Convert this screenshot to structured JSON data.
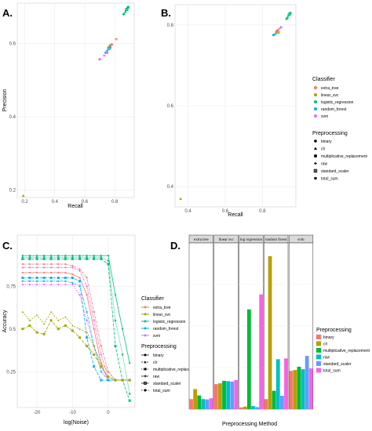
{
  "panels": {
    "A": {
      "label": "A."
    },
    "B": {
      "label": "B."
    },
    "C": {
      "label": "C."
    },
    "D": {
      "label": "D."
    }
  },
  "colors": {
    "extra_tree": "#f8766d",
    "linear_svc": "#a3a500",
    "logistic_regression": "#00bf7d",
    "random_forest": "#00b0f6",
    "svm": "#e76bf3",
    "binary": "#f8766d",
    "clr": "#b79f00",
    "multiplicative_replacement": "#00ba38",
    "raw": "#00bfc4",
    "standard_scaler": "#619cff",
    "total_sum": "#f564e3"
  },
  "legend_ab": {
    "classifier_title": "Classifier",
    "classifiers": [
      "extra_tree",
      "linear_svc",
      "logistic_regression",
      "random_forest",
      "svm"
    ],
    "preprocessing_title": "Preprocessing",
    "preprocessing": [
      "binary",
      "clr",
      "multiplicative_replacement",
      "raw",
      "standard_scaler",
      "total_sum"
    ]
  },
  "legend_c": {
    "classifier_title": "Classifier",
    "classifiers": [
      "extra_tree",
      "linear_svc",
      "logistic_regression",
      "random_forest",
      "svm"
    ],
    "preprocessing_title": "Preprocessing",
    "preprocessing": [
      "binary",
      "clr",
      "multiplicative_replacement",
      "raw",
      "standard_scaler",
      "total_sum"
    ]
  },
  "legend_d": {
    "title": "Preprocessing",
    "items": [
      "binary",
      "clr",
      "multiplicative_replacement",
      "raw",
      "standard_scaler",
      "total_sum"
    ]
  },
  "chart_data": [
    {
      "panel": "A",
      "type": "scatter",
      "xlabel": "Recall",
      "ylabel": "Precision",
      "xlim": [
        0.15,
        0.93
      ],
      "ylim": [
        0.18,
        0.71
      ],
      "xticks": [
        0.2,
        0.4,
        0.6,
        0.8
      ],
      "yticks": [
        0.2,
        0.4,
        0.6
      ],
      "legend_position": "right",
      "grid": true,
      "points": [
        {
          "x": 0.19,
          "y": 0.185,
          "classifier": "linear_svc",
          "preprocessing": "clr"
        },
        {
          "x": 0.81,
          "y": 0.612,
          "classifier": "extra_tree",
          "preprocessing": "raw"
        },
        {
          "x": 0.78,
          "y": 0.597,
          "classifier": "extra_tree",
          "preprocessing": "binary"
        },
        {
          "x": 0.77,
          "y": 0.595,
          "classifier": "extra_tree",
          "preprocessing": "total_sum"
        },
        {
          "x": 0.86,
          "y": 0.68,
          "classifier": "logistic_regression",
          "preprocessing": "binary"
        },
        {
          "x": 0.87,
          "y": 0.686,
          "classifier": "logistic_regression",
          "preprocessing": "clr"
        },
        {
          "x": 0.875,
          "y": 0.69,
          "classifier": "logistic_regression",
          "preprocessing": "raw"
        },
        {
          "x": 0.88,
          "y": 0.693,
          "classifier": "logistic_regression",
          "preprocessing": "standard_scaler"
        },
        {
          "x": 0.885,
          "y": 0.696,
          "classifier": "logistic_regression",
          "preprocessing": "total_sum"
        },
        {
          "x": 0.89,
          "y": 0.699,
          "classifier": "logistic_regression",
          "preprocessing": "multiplicative_replacement"
        },
        {
          "x": 0.74,
          "y": 0.575,
          "classifier": "random_forest",
          "preprocessing": "binary"
        },
        {
          "x": 0.75,
          "y": 0.58,
          "classifier": "random_forest",
          "preprocessing": "raw"
        },
        {
          "x": 0.76,
          "y": 0.586,
          "classifier": "random_forest",
          "preprocessing": "standard_scaler"
        },
        {
          "x": 0.765,
          "y": 0.59,
          "classifier": "linear_svc",
          "preprocessing": "standard_scaler"
        },
        {
          "x": 0.77,
          "y": 0.589,
          "classifier": "random_forest",
          "preprocessing": "total_sum"
        },
        {
          "x": 0.7,
          "y": 0.557,
          "classifier": "svm",
          "preprocessing": "binary"
        },
        {
          "x": 0.73,
          "y": 0.567,
          "classifier": "svm",
          "preprocessing": "raw"
        },
        {
          "x": 0.75,
          "y": 0.575,
          "classifier": "svm",
          "preprocessing": "total_sum"
        }
      ]
    },
    {
      "panel": "B",
      "type": "scatter",
      "xlabel": "Recall",
      "ylabel": "",
      "xlim": [
        0.33,
        0.98
      ],
      "ylim": [
        0.35,
        0.85
      ],
      "xticks": [
        0.4,
        0.6,
        0.8
      ],
      "yticks": [
        0.4,
        0.6,
        0.8
      ],
      "legend_position": "right",
      "grid": true,
      "points": [
        {
          "x": 0.36,
          "y": 0.37,
          "classifier": "linear_svc",
          "preprocessing": "clr"
        },
        {
          "x": 0.86,
          "y": 0.775,
          "classifier": "random_forest",
          "preprocessing": "binary"
        },
        {
          "x": 0.87,
          "y": 0.778,
          "classifier": "random_forest",
          "preprocessing": "raw"
        },
        {
          "x": 0.875,
          "y": 0.783,
          "classifier": "extra_tree",
          "preprocessing": "binary"
        },
        {
          "x": 0.88,
          "y": 0.787,
          "classifier": "extra_tree",
          "preprocessing": "raw"
        },
        {
          "x": 0.885,
          "y": 0.782,
          "classifier": "linear_svc",
          "preprocessing": "standard_scaler"
        },
        {
          "x": 0.89,
          "y": 0.79,
          "classifier": "svm",
          "preprocessing": "raw"
        },
        {
          "x": 0.9,
          "y": 0.794,
          "classifier": "svm",
          "preprocessing": "total_sum"
        },
        {
          "x": 0.93,
          "y": 0.815,
          "classifier": "logistic_regression",
          "preprocessing": "binary"
        },
        {
          "x": 0.935,
          "y": 0.819,
          "classifier": "logistic_regression",
          "preprocessing": "clr"
        },
        {
          "x": 0.94,
          "y": 0.823,
          "classifier": "logistic_regression",
          "preprocessing": "raw"
        },
        {
          "x": 0.945,
          "y": 0.826,
          "classifier": "logistic_regression",
          "preprocessing": "standard_scaler"
        },
        {
          "x": 0.95,
          "y": 0.829,
          "classifier": "logistic_regression",
          "preprocessing": "multiplicative_replacement"
        }
      ]
    },
    {
      "panel": "C",
      "type": "line",
      "xlabel": "log(Noise)",
      "ylabel": "Accuracy",
      "xlim": [
        -25.5,
        7.5
      ],
      "ylim": [
        0.04,
        1.05
      ],
      "xticks": [
        -20,
        -10,
        0
      ],
      "yticks": [
        0.25,
        0.5,
        0.75
      ],
      "legend_position": "right",
      "grid": true,
      "x": [
        -24,
        -22,
        -20,
        -18,
        -16,
        -14,
        -12,
        -10,
        -8,
        -6,
        -4,
        -2,
        0,
        2,
        4,
        6
      ],
      "series": [
        {
          "classifier": "logistic_regression",
          "preprocessing": "binary",
          "values": [
            0.93,
            0.93,
            0.93,
            0.93,
            0.93,
            0.93,
            0.93,
            0.93,
            0.93,
            0.93,
            0.93,
            0.93,
            0.93,
            0.7,
            0.5,
            0.3
          ]
        },
        {
          "classifier": "logistic_regression",
          "preprocessing": "multiplicative_replacement",
          "values": [
            0.92,
            0.92,
            0.92,
            0.92,
            0.92,
            0.92,
            0.92,
            0.92,
            0.92,
            0.92,
            0.92,
            0.92,
            0.9,
            0.55,
            0.35,
            0.12
          ]
        },
        {
          "classifier": "logistic_regression",
          "preprocessing": "standard_scaler",
          "values": [
            0.91,
            0.91,
            0.91,
            0.91,
            0.91,
            0.91,
            0.91,
            0.91,
            0.91,
            0.91,
            0.91,
            0.91,
            0.88,
            0.4,
            0.2,
            0.08
          ]
        },
        {
          "classifier": "extra_tree",
          "preprocessing": "raw",
          "values": [
            0.88,
            0.88,
            0.88,
            0.88,
            0.88,
            0.88,
            0.88,
            0.87,
            0.85,
            0.8,
            0.6,
            0.4,
            0.25,
            0.2,
            0.2,
            0.2
          ]
        },
        {
          "classifier": "extra_tree",
          "preprocessing": "binary",
          "values": [
            0.83,
            0.83,
            0.83,
            0.83,
            0.83,
            0.83,
            0.83,
            0.82,
            0.8,
            0.7,
            0.5,
            0.3,
            0.2,
            0.2,
            0.2,
            0.2
          ]
        },
        {
          "classifier": "svm",
          "preprocessing": "raw",
          "values": [
            0.86,
            0.86,
            0.86,
            0.86,
            0.86,
            0.86,
            0.86,
            0.86,
            0.84,
            0.75,
            0.55,
            0.35,
            0.22,
            0.2,
            0.2,
            0.2
          ]
        },
        {
          "classifier": "svm",
          "preprocessing": "total_sum",
          "values": [
            0.76,
            0.76,
            0.76,
            0.76,
            0.76,
            0.76,
            0.76,
            0.76,
            0.7,
            0.55,
            0.4,
            0.28,
            0.2,
            0.2,
            0.2,
            0.2
          ]
        },
        {
          "classifier": "random_forest",
          "preprocessing": "raw",
          "values": [
            0.78,
            0.78,
            0.78,
            0.78,
            0.78,
            0.78,
            0.78,
            0.77,
            0.75,
            0.6,
            0.4,
            0.25,
            0.2,
            0.2,
            0.2,
            0.2
          ]
        },
        {
          "classifier": "random_forest",
          "preprocessing": "standard_scaler",
          "values": [
            0.8,
            0.8,
            0.8,
            0.8,
            0.8,
            0.8,
            0.8,
            0.8,
            0.78,
            0.45,
            0.28,
            0.2,
            0.2,
            0.2,
            0.2,
            0.2
          ]
        },
        {
          "classifier": "linear_svc",
          "preprocessing": "clr",
          "values": [
            0.6,
            0.55,
            0.58,
            0.53,
            0.6,
            0.55,
            0.57,
            0.52,
            0.5,
            0.48,
            0.4,
            0.3,
            0.25,
            0.2,
            0.2,
            0.2
          ]
        },
        {
          "classifier": "linear_svc",
          "preprocessing": "standard_scaler",
          "values": [
            0.5,
            0.52,
            0.48,
            0.47,
            0.55,
            0.5,
            0.52,
            0.49,
            0.45,
            0.4,
            0.35,
            0.28,
            0.22,
            0.2,
            0.2,
            0.2
          ]
        }
      ]
    },
    {
      "panel": "D",
      "type": "bar",
      "xlabel": "Preprocessing Method",
      "ylabel": "",
      "facets": [
        "extra tree",
        "linear svc",
        "log regression",
        "random forest",
        "svm"
      ],
      "categories": [
        "binary",
        "clr",
        "multiplicative_replacement",
        "raw",
        "standard_scaler",
        "total_sum"
      ],
      "ylim": [
        0,
        1.0
      ],
      "legend_position": "right",
      "grid": true,
      "values": [
        [
          0.06,
          0.12,
          0.082,
          0.06,
          0.058,
          0.065
        ],
        [
          0.15,
          0.155,
          0.17,
          0.168,
          0.165,
          0.175
        ],
        [
          0.01,
          0.015,
          0.6,
          0.018,
          0.012,
          0.69
        ],
        [
          0.06,
          0.92,
          0.11,
          0.3,
          0.08,
          0.305
        ],
        [
          0.23,
          0.235,
          0.255,
          0.24,
          0.32,
          0.245
        ]
      ]
    }
  ]
}
